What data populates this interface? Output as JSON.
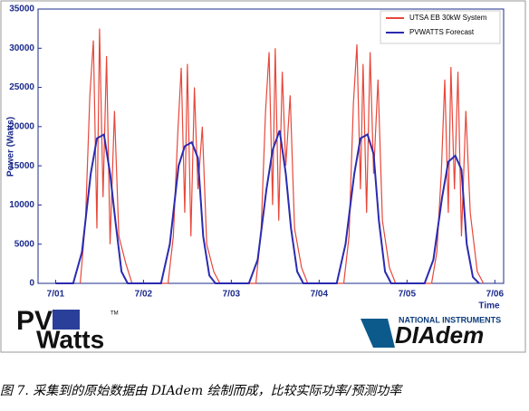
{
  "chart_data": {
    "type": "line",
    "ylabel": "Power (Watts)",
    "xlabel": "Time",
    "xlim": [
      -0.2,
      5.1
    ],
    "xticks": [
      {
        "value": 0,
        "label": "7/01"
      },
      {
        "value": 1,
        "label": "7/02"
      },
      {
        "value": 2,
        "label": "7/03"
      },
      {
        "value": 3,
        "label": "7/04"
      },
      {
        "value": 4,
        "label": "7/05"
      },
      {
        "value": 5,
        "label": "7/06"
      }
    ],
    "ylim": [
      0,
      35000
    ],
    "yticks": [
      0,
      5000,
      10000,
      15000,
      20000,
      25000,
      30000,
      35000
    ],
    "grid": false,
    "legend": "upper right",
    "series": [
      {
        "name": "UTSA EB 30kW System",
        "color": "#e8473a",
        "x": [
          0.28,
          0.34,
          0.39,
          0.43,
          0.47,
          0.5,
          0.54,
          0.58,
          0.62,
          0.67,
          0.72,
          0.8,
          0.87,
          1.28,
          1.34,
          1.39,
          1.43,
          1.47,
          1.5,
          1.54,
          1.58,
          1.62,
          1.67,
          1.72,
          1.8,
          1.87,
          2.28,
          2.34,
          2.39,
          2.43,
          2.47,
          2.5,
          2.54,
          2.58,
          2.62,
          2.67,
          2.72,
          2.8,
          2.87,
          3.28,
          3.34,
          3.39,
          3.43,
          3.47,
          3.5,
          3.54,
          3.58,
          3.62,
          3.67,
          3.72,
          3.8,
          3.87,
          4.28,
          4.34,
          4.39,
          4.43,
          4.47,
          4.5,
          4.54,
          4.58,
          4.62,
          4.67,
          4.72,
          4.8,
          4.87
        ],
        "values": [
          0,
          8000,
          24000,
          31000,
          7000,
          32500,
          11000,
          29000,
          5000,
          22000,
          6000,
          2500,
          0,
          0,
          6000,
          19000,
          27500,
          9000,
          28000,
          6000,
          25000,
          12000,
          20000,
          5000,
          1500,
          0,
          0,
          7000,
          22000,
          29500,
          10000,
          30000,
          8000,
          27000,
          15000,
          24000,
          7000,
          2000,
          0,
          0,
          6000,
          23000,
          30500,
          12000,
          28000,
          9000,
          29500,
          14000,
          26000,
          8000,
          2000,
          0,
          0,
          4000,
          14000,
          26000,
          9000,
          27600,
          12000,
          27000,
          6000,
          22000,
          9000,
          1500,
          0
        ]
      },
      {
        "name": "PVWATTS Forecast",
        "color": "#2b2bb0",
        "x": [
          0,
          0.2,
          0.3,
          0.4,
          0.47,
          0.55,
          0.62,
          0.68,
          0.75,
          0.82,
          1.2,
          1.3,
          1.4,
          1.47,
          1.55,
          1.62,
          1.68,
          1.75,
          1.82,
          2.2,
          2.3,
          2.4,
          2.47,
          2.55,
          2.62,
          2.68,
          2.75,
          2.82,
          3.2,
          3.3,
          3.4,
          3.47,
          3.55,
          3.62,
          3.68,
          3.75,
          3.82,
          4.2,
          4.3,
          4.4,
          4.47,
          4.55,
          4.62,
          4.68,
          4.75,
          4.82
        ],
        "values": [
          0,
          0,
          4000,
          14000,
          18500,
          19000,
          14000,
          8000,
          1500,
          0,
          0,
          5000,
          15000,
          17500,
          18000,
          16000,
          6000,
          1000,
          0,
          0,
          3000,
          12000,
          17000,
          19500,
          14000,
          7000,
          1500,
          0,
          0,
          5000,
          14000,
          18500,
          19000,
          16500,
          8000,
          1500,
          0,
          0,
          3000,
          11000,
          15500,
          16300,
          14500,
          5000,
          800,
          0
        ]
      }
    ]
  },
  "logos": {
    "pv": "PV",
    "watts": "Watts",
    "tm": "TM",
    "ni": "NATIONAL INSTRUMENTS",
    "diadem": "DIAdem"
  },
  "caption": "图 7. 采集到的原始数据由 DIAdem 绘制而成，比较实际功率/预测功率"
}
